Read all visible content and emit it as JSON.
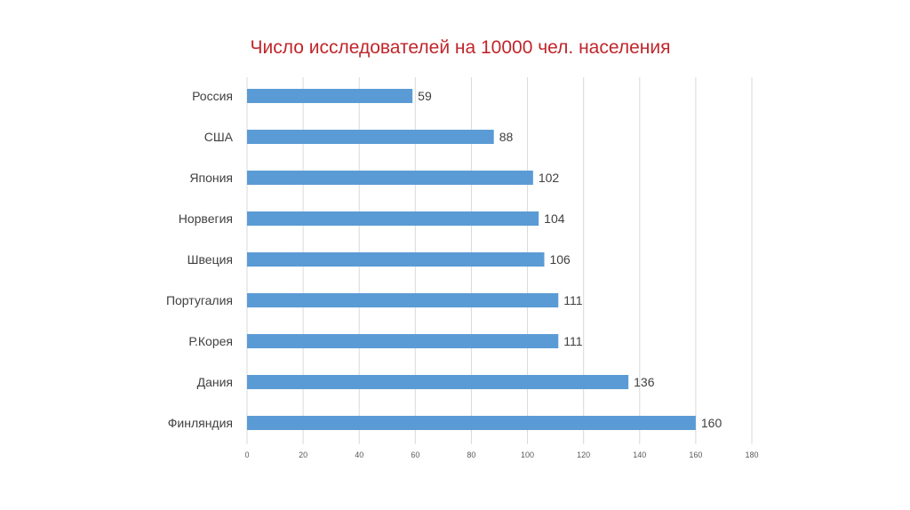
{
  "chart_data": {
    "type": "bar",
    "orientation": "horizontal",
    "title": "Число исследователей на 10000 чел. населения",
    "xlabel": "",
    "ylabel": "",
    "categories": [
      "Россия",
      "США",
      "Япония",
      "Норвегия",
      "Швеция",
      "Португалия",
      "Р.Корея",
      "Дания",
      "Финляндия"
    ],
    "values": [
      59,
      88,
      102,
      104,
      106,
      111,
      111,
      136,
      160
    ],
    "xlim": [
      0,
      180
    ],
    "xticks": [
      0,
      20,
      40,
      60,
      80,
      100,
      120,
      140,
      160,
      180
    ],
    "grid": "vertical",
    "legend": "none",
    "data_labels": true,
    "colors": {
      "bar": "#5b9bd5",
      "title": "#c0262b",
      "grid": "#d9d9d9",
      "label": "#404040",
      "tick": "#595959"
    }
  }
}
